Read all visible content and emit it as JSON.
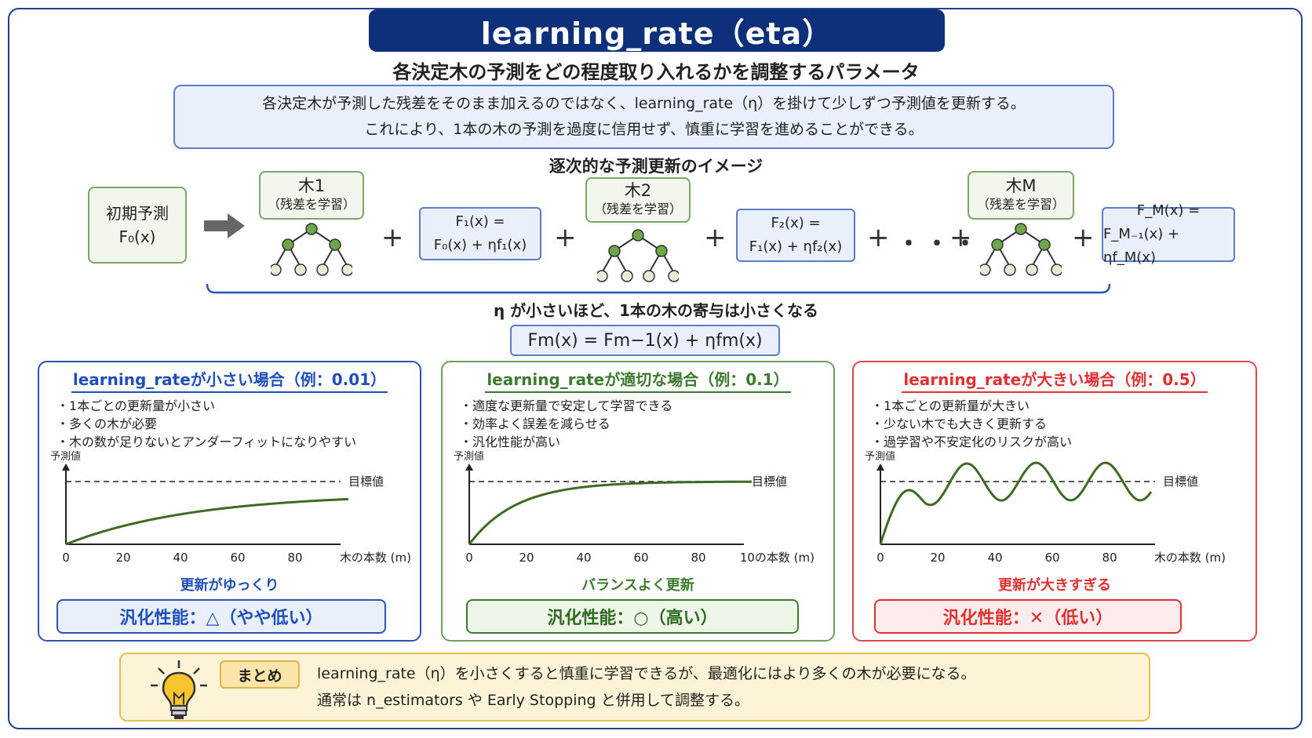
{
  "title": "learning_rate（eta）",
  "subtitle": "各決定木の予測をどの程度取り入れるかを調整するパラメータ",
  "description": [
    "各決定木が予測した残差をそのまま加えるのではなく、learning_rate（η）を掛けて少しずつ予測値を更新する。",
    "これにより、1本の木の予測を過度に信用せず、慎重に学習を進めることができる。"
  ],
  "sequence": {
    "title": "逐次的な予測更新のイメージ",
    "initial": {
      "line1": "初期予測",
      "line2": "F₀(x)"
    },
    "trees": [
      {
        "name": "木1",
        "sub": "（残差を学習）"
      },
      {
        "name": "木2",
        "sub": "（残差を学習）"
      },
      {
        "name": "木M",
        "sub": "（残差を学習）"
      }
    ],
    "updates": [
      {
        "line1": "F₁(x) =",
        "line2": "F₀(x) + ηf₁(x)"
      },
      {
        "line1": "F₂(x) =",
        "line2": "F₁(x) + ηf₂(x)"
      },
      {
        "line1": "F_M(x) =",
        "line2": "F_M₋₁(x) + ηf_M(x)"
      }
    ],
    "plus": "+",
    "ellipsis": "・・・",
    "note": "η が小さいほど、1本の木の寄与は小さくなる",
    "formula": "Fm(x) = Fm−1(x) + ηfm(x)"
  },
  "colors": {
    "blue": "#1f4fb8",
    "green": "#3c7a2e",
    "red": "#e03030",
    "curve": "#3d6b22"
  },
  "panels": [
    {
      "title": "learning_rateが小さい場合（例：0.01）",
      "bullets": [
        "1本ごとの更新量が小さい",
        "多くの木が必要",
        "木の数が足りないとアンダーフィットになりやすい"
      ],
      "ylabel": "予測値",
      "target_label": "目標値",
      "xlabel": "木の本数 (m)",
      "ticks": [
        "0",
        "20",
        "40",
        "60",
        "80"
      ],
      "caption": "更新がゆっくり",
      "verdict": "汎化性能：△（やや低い）"
    },
    {
      "title": "learning_rateが適切な場合（例：0.1）",
      "bullets": [
        "適度な更新量で安定して学習できる",
        "効率よく誤差を減らせる",
        "汎化性能が高い"
      ],
      "ylabel": "予測値",
      "target_label": "目標値",
      "xlabel": "10の本数 (m)",
      "ticks": [
        "0",
        "20",
        "40",
        "60",
        "80"
      ],
      "caption": "バランスよく更新",
      "verdict": "汎化性能：○（高い）"
    },
    {
      "title": "learning_rateが大きい場合（例：0.5）",
      "bullets": [
        "1本ごとの更新量が大きい",
        "少ない木でも大きく更新する",
        "過学習や不安定化のリスクが高い"
      ],
      "ylabel": "予測値",
      "target_label": "目標値",
      "xlabel": "木の本数 (m)",
      "ticks": [
        "0",
        "20",
        "40",
        "60",
        "80"
      ],
      "caption": "更新が大きすぎる",
      "verdict": "汎化性能：✕（低い）"
    }
  ],
  "summary": {
    "tag": "まとめ",
    "lines": [
      "learning_rate（η）を小さくすると慎重に学習できるが、最適化にはより多くの木が必要になる。",
      "通常は n_estimators や Early Stopping と併用して調整する。"
    ]
  }
}
